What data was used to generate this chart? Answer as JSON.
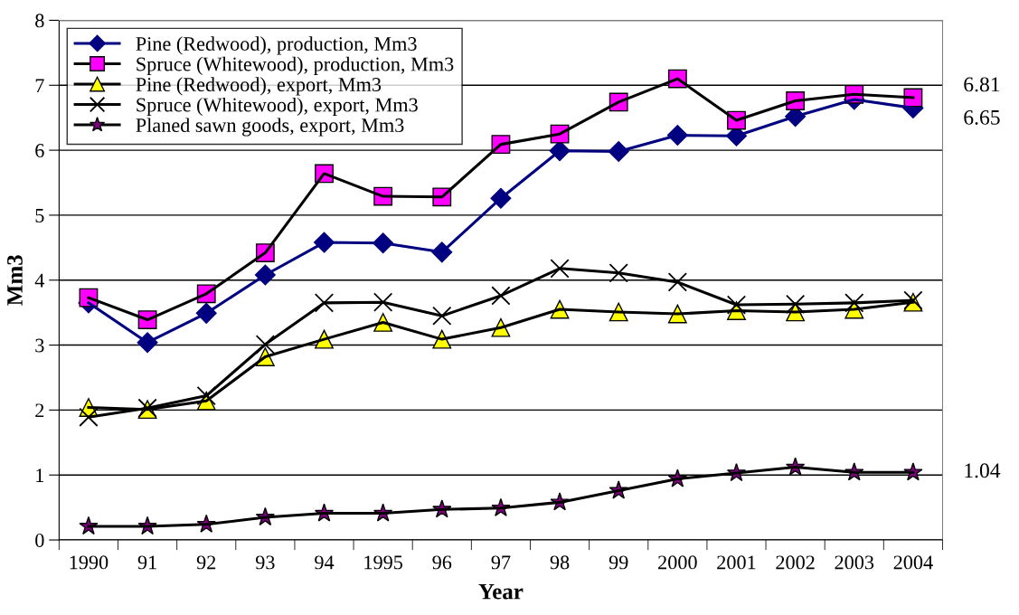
{
  "chart_data": {
    "type": "line",
    "xlabel": "Year",
    "ylabel": "Mm3",
    "categories": [
      "1990",
      "91",
      "92",
      "93",
      "94",
      "1995",
      "96",
      "97",
      "98",
      "99",
      "2000",
      "2001",
      "2002",
      "2003",
      "2004"
    ],
    "series": [
      {
        "name": "Pine (Redwood), production, Mm3",
        "color": "#000080",
        "marker": "diamond",
        "values": [
          3.65,
          3.04,
          3.49,
          4.08,
          4.58,
          4.57,
          4.43,
          5.26,
          5.99,
          5.98,
          6.23,
          6.22,
          6.52,
          6.78,
          6.65
        ]
      },
      {
        "name": "Spruce (Whitewood), production, Mm3",
        "color": "#ff00ff",
        "marker": "square",
        "values": [
          3.73,
          3.39,
          3.79,
          4.42,
          5.64,
          5.29,
          5.28,
          6.09,
          6.25,
          6.74,
          7.1,
          6.46,
          6.76,
          6.86,
          6.81
        ]
      },
      {
        "name": "Pine (Redwood), export, Mm3",
        "color": "#ffff00",
        "marker": "triangle",
        "values": [
          2.04,
          2.01,
          2.14,
          2.82,
          3.09,
          3.35,
          3.09,
          3.27,
          3.55,
          3.51,
          3.48,
          3.53,
          3.51,
          3.55,
          3.66
        ]
      },
      {
        "name": "Spruce (Whitewood), export, Mm3",
        "color": "#000000",
        "marker": "cross",
        "values": [
          1.89,
          2.03,
          2.22,
          3.01,
          3.65,
          3.66,
          3.45,
          3.76,
          4.18,
          4.11,
          3.97,
          3.62,
          3.63,
          3.65,
          3.69
        ]
      },
      {
        "name": "Planed sawn goods, export, Mm3",
        "color": "#800080",
        "marker": "star",
        "values": [
          0.21,
          0.21,
          0.24,
          0.35,
          0.41,
          0.41,
          0.47,
          0.49,
          0.58,
          0.76,
          0.94,
          1.03,
          1.12,
          1.04,
          1.04
        ]
      }
    ],
    "ylim": [
      0,
      8
    ],
    "yticks": [
      0,
      1,
      2,
      3,
      4,
      5,
      6,
      7,
      8
    ],
    "grid": "y",
    "legend": "top left",
    "annotations": [
      {
        "text": "6.81",
        "x": "2004",
        "y": 6.81
      },
      {
        "text": "6.65",
        "x": "2004",
        "y": 6.65
      },
      {
        "text": "1.04",
        "x": "2004",
        "y": 1.04
      }
    ]
  }
}
